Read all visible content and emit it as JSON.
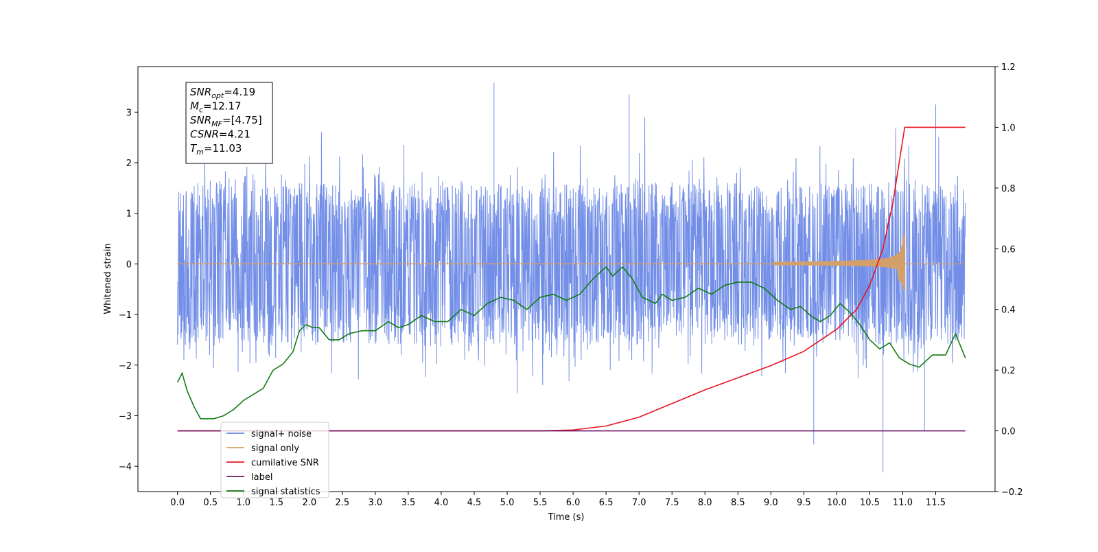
{
  "chart_data": {
    "type": "line",
    "xlabel": "Time (s)",
    "ylabel": "Whitened strain",
    "xlim": [
      -0.6,
      12.4
    ],
    "ylim": [
      -4.5,
      3.9
    ],
    "y2lim": [
      -0.2,
      1.2
    ],
    "x_ticks": [
      "0.0",
      "0.5",
      "1.0",
      "1.5",
      "2.0",
      "2.5",
      "3.0",
      "3.5",
      "4.0",
      "4.5",
      "5.0",
      "5.5",
      "6.0",
      "6.5",
      "7.0",
      "7.5",
      "8.0",
      "8.5",
      "9.0",
      "9.5",
      "10.0",
      "10.5",
      "11.0",
      "11.5"
    ],
    "y_ticks": [
      "3",
      "2",
      "1",
      "0",
      "−1",
      "−2",
      "−3",
      "−4"
    ],
    "y2_ticks": [
      "1.2",
      "1.0",
      "0.8",
      "0.6",
      "0.4",
      "0.2",
      "0.0",
      "−0.2"
    ],
    "legend_placement": "lower-left",
    "annotations": [
      {
        "name": "SNR",
        "sub": "opt",
        "value": "=4.19"
      },
      {
        "name": "M",
        "sub": "c",
        "value": "=12.17"
      },
      {
        "name": "SNR",
        "sub": "MF",
        "value": "=[4.75]"
      },
      {
        "name": "CSNR",
        "sub": "",
        "value": "=4.21"
      },
      {
        "name": "T",
        "sub": "m",
        "value": "=11.03"
      }
    ],
    "series": [
      {
        "name": "signal+ noise",
        "color": "#6a88e6",
        "axis": "left",
        "kind": "noise",
        "x_range": [
          0.0,
          11.95
        ],
        "envelope_upper": [
          2.2,
          2.9,
          3.0,
          2.8,
          2.9,
          3.6,
          3.0,
          3.3,
          3.0,
          3.1
        ],
        "envelope_lower": [
          -2.4,
          -2.8,
          -3.0,
          -2.7,
          -3.1,
          -2.6,
          -3.0,
          -3.1,
          -4.1,
          -3.0
        ],
        "spikes": [
          [
            4.8,
            3.58
          ],
          [
            9.65,
            -3.57
          ],
          [
            10.7,
            -4.12
          ],
          [
            11.33,
            -3.3
          ],
          [
            6.85,
            3.35
          ],
          [
            11.5,
            3.15
          ]
        ]
      },
      {
        "name": "signal only",
        "color": "#d4a06a",
        "axis": "left",
        "kind": "chirp",
        "x_range": [
          0.0,
          11.95
        ],
        "merger_time": 11.03,
        "peak_amplitude": 0.58
      },
      {
        "name": "cumilative SNR",
        "color": "#e8121c",
        "axis": "right",
        "x": [
          0.0,
          5.5,
          6.0,
          6.5,
          7.0,
          7.5,
          8.0,
          8.5,
          9.0,
          9.5,
          10.0,
          10.3,
          10.5,
          10.7,
          10.85,
          10.95,
          11.03,
          11.95
        ],
        "y": [
          0.0,
          0.0,
          0.003,
          0.016,
          0.045,
          0.09,
          0.135,
          0.175,
          0.215,
          0.262,
          0.335,
          0.4,
          0.48,
          0.6,
          0.75,
          0.89,
          1.0,
          1.0
        ]
      },
      {
        "name": "label",
        "color": "#6e1266",
        "axis": "right",
        "x": [
          0.0,
          11.95
        ],
        "y": [
          0.0,
          0.0
        ]
      },
      {
        "name": "signal statistics",
        "color": "#127a12",
        "axis": "right",
        "x": [
          0.0,
          0.07,
          0.15,
          0.25,
          0.35,
          0.45,
          0.55,
          0.7,
          0.85,
          1.0,
          1.15,
          1.3,
          1.45,
          1.6,
          1.75,
          1.85,
          1.95,
          2.05,
          2.15,
          2.3,
          2.45,
          2.6,
          2.8,
          3.0,
          3.2,
          3.35,
          3.5,
          3.7,
          3.9,
          4.1,
          4.3,
          4.5,
          4.7,
          4.9,
          5.1,
          5.3,
          5.5,
          5.7,
          5.9,
          6.1,
          6.3,
          6.5,
          6.6,
          6.75,
          6.9,
          7.05,
          7.25,
          7.35,
          7.5,
          7.7,
          7.9,
          8.1,
          8.3,
          8.5,
          8.7,
          8.9,
          9.1,
          9.3,
          9.45,
          9.6,
          9.75,
          9.9,
          10.05,
          10.2,
          10.35,
          10.5,
          10.65,
          10.8,
          10.95,
          11.1,
          11.25,
          11.45,
          11.65,
          11.8,
          11.95
        ],
        "y": [
          0.16,
          0.19,
          0.13,
          0.08,
          0.04,
          0.04,
          0.04,
          0.05,
          0.07,
          0.1,
          0.12,
          0.14,
          0.2,
          0.22,
          0.26,
          0.33,
          0.35,
          0.34,
          0.34,
          0.3,
          0.3,
          0.32,
          0.33,
          0.33,
          0.36,
          0.34,
          0.35,
          0.38,
          0.36,
          0.36,
          0.4,
          0.38,
          0.42,
          0.44,
          0.43,
          0.4,
          0.44,
          0.45,
          0.43,
          0.45,
          0.5,
          0.54,
          0.51,
          0.54,
          0.5,
          0.44,
          0.42,
          0.45,
          0.43,
          0.44,
          0.47,
          0.45,
          0.48,
          0.49,
          0.49,
          0.47,
          0.43,
          0.4,
          0.41,
          0.38,
          0.36,
          0.38,
          0.42,
          0.39,
          0.35,
          0.3,
          0.27,
          0.29,
          0.24,
          0.22,
          0.21,
          0.25,
          0.25,
          0.32,
          0.24
        ]
      }
    ]
  }
}
